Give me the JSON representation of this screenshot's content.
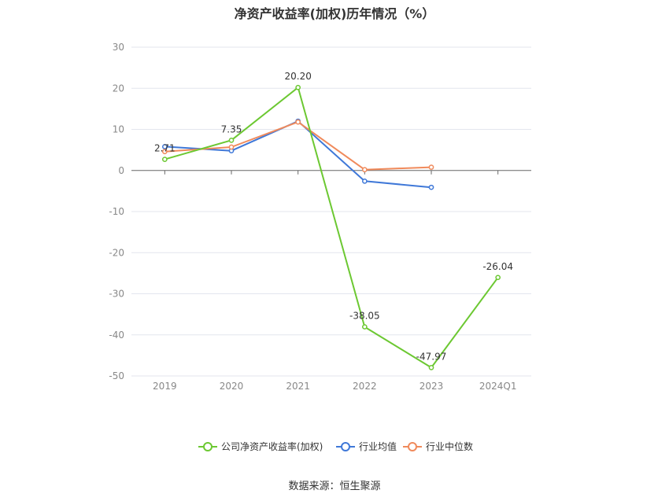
{
  "chart_data": {
    "type": "line",
    "title": "净资产收益率(加权)历年情况（%）",
    "categories": [
      "2019",
      "2020",
      "2021",
      "2022",
      "2023",
      "2024Q1"
    ],
    "ylim": [
      -50,
      30
    ],
    "yticks": [
      30,
      20,
      10,
      0,
      -10,
      -20,
      -30,
      -40,
      -50
    ],
    "grid": true,
    "legend_position": "bottom-center",
    "series": [
      {
        "name": "公司净资产收益率(加权)",
        "color": "#6cc832",
        "values": [
          2.71,
          7.35,
          20.2,
          -38.05,
          -47.97,
          -26.04
        ],
        "labels": [
          "2.71",
          "7.35",
          "20.20",
          "-38.05",
          "-47.97",
          "-26.04"
        ]
      },
      {
        "name": "行业均值",
        "color": "#3f78d8",
        "values": [
          5.8,
          4.8,
          12.0,
          -2.6,
          -4.1,
          null
        ]
      },
      {
        "name": "行业中位数",
        "color": "#f08a5b",
        "values": [
          4.6,
          5.7,
          11.8,
          0.2,
          0.8,
          null
        ]
      }
    ]
  },
  "footer": {
    "source": "数据来源：恒生聚源"
  }
}
